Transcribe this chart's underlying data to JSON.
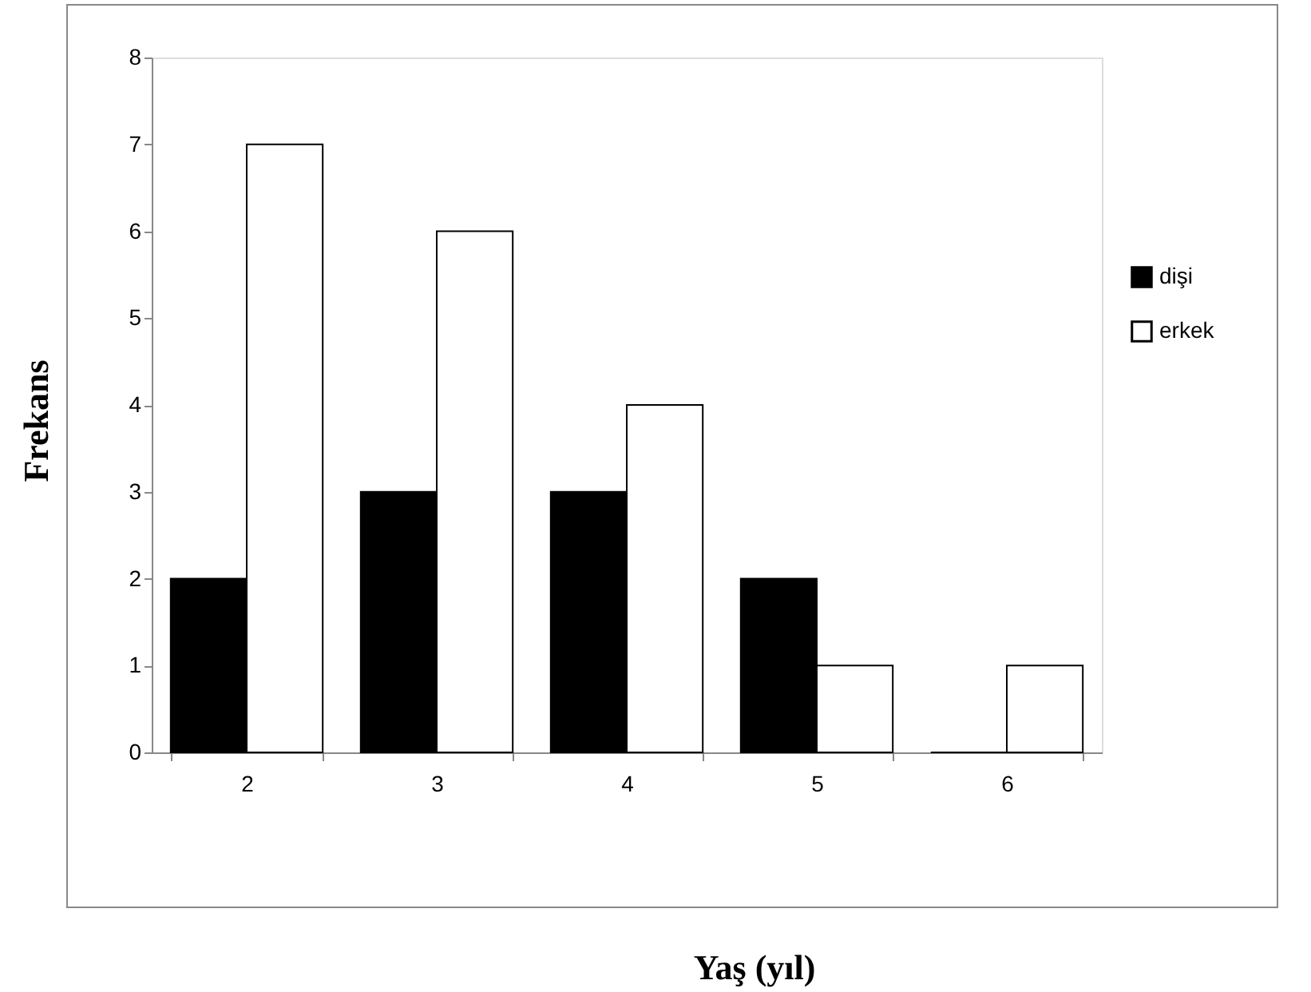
{
  "chart_data": {
    "type": "bar",
    "xlabel": "Yaş (yıl)",
    "ylabel": "Frekans",
    "categories": [
      "2",
      "3",
      "4",
      "5",
      "6"
    ],
    "series": [
      {
        "name": "dişi",
        "color": "#000000",
        "values": [
          2,
          3,
          3,
          2,
          0
        ]
      },
      {
        "name": "erkek",
        "color": "#ffffff",
        "values": [
          7,
          6,
          4,
          1,
          1
        ]
      }
    ],
    "ylim": [
      0,
      8
    ],
    "yticks": [
      0,
      1,
      2,
      3,
      4,
      5,
      6,
      7,
      8
    ],
    "grid": false,
    "legend": "right"
  }
}
